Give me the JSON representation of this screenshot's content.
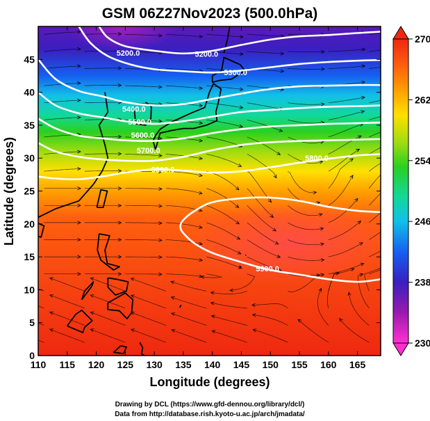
{
  "chart_data": {
    "type": "heatmap",
    "title": "GSM 06Z27Nov2023 (500.0hPa)",
    "xlabel": "Longitude (degrees)",
    "ylabel": "Latitude  (degrees)",
    "x_ticks": [
      110,
      115,
      120,
      125,
      130,
      135,
      140,
      145,
      150,
      155,
      160,
      165
    ],
    "y_ticks": [
      0,
      5,
      10,
      15,
      20,
      25,
      30,
      35,
      40,
      45
    ],
    "xlim": [
      110,
      169
    ],
    "ylim": [
      0,
      50
    ],
    "colorbar": {
      "ticks": [
        230,
        238,
        246,
        254,
        262,
        270
      ],
      "range": [
        230,
        270
      ],
      "colors": [
        "#ff30d0",
        "#9a1ab0",
        "#3a1fc0",
        "#1560f0",
        "#12c0e8",
        "#12d89a",
        "#2ad020",
        "#a0dc10",
        "#ffe000",
        "#ffa000",
        "#ff6010",
        "#ee2810"
      ]
    },
    "contour_labels": [
      {
        "text": "5200.0",
        "lon": 125.5,
        "lat": 46.0
      },
      {
        "text": "5200.0",
        "lon": 139.0,
        "lat": 45.8
      },
      {
        "text": "5300.0",
        "lon": 144.0,
        "lat": 43.0
      },
      {
        "text": "5400.0",
        "lon": 126.5,
        "lat": 37.5
      },
      {
        "text": "5500.0",
        "lon": 127.5,
        "lat": 35.5
      },
      {
        "text": "5600.0",
        "lon": 128.0,
        "lat": 33.5
      },
      {
        "text": "5700.0",
        "lon": 129.0,
        "lat": 31.2
      },
      {
        "text": "5800.0",
        "lon": 131.5,
        "lat": 28.3
      },
      {
        "text": "5800.0",
        "lon": 158.0,
        "lat": 30.0
      },
      {
        "text": "5900.0",
        "lon": 149.5,
        "lat": 13.2
      }
    ],
    "contour_lines": [
      {
        "level": "5200",
        "points": [
          [
            120.5,
            50
          ],
          [
            122,
            48.3
          ],
          [
            125,
            47.0
          ],
          [
            130,
            46.3
          ],
          [
            135,
            45.9
          ],
          [
            140,
            46.3
          ],
          [
            145,
            47.2
          ],
          [
            150,
            48.0
          ],
          [
            155,
            48.5
          ],
          [
            160,
            48.7
          ],
          [
            165,
            49.0
          ],
          [
            169,
            49.2
          ]
        ]
      },
      {
        "level": "5300",
        "points": [
          [
            117,
            50
          ],
          [
            119,
            47.5
          ],
          [
            122,
            45.5
          ],
          [
            126,
            44.2
          ],
          [
            130,
            43.5
          ],
          [
            135,
            43.2
          ],
          [
            140,
            43.0
          ],
          [
            145,
            43.3
          ],
          [
            150,
            43.8
          ],
          [
            155,
            44.3
          ],
          [
            160,
            44.6
          ],
          [
            165,
            44.8
          ],
          [
            169,
            44.9
          ]
        ]
      },
      {
        "level": "5400",
        "points": [
          [
            110,
            45.0
          ],
          [
            113,
            42.0
          ],
          [
            117,
            40.2
          ],
          [
            121,
            39.4
          ],
          [
            125,
            38.5
          ],
          [
            130,
            38.0
          ],
          [
            135,
            38.2
          ],
          [
            140,
            39.0
          ],
          [
            145,
            39.8
          ],
          [
            150,
            40.5
          ],
          [
            155,
            40.9
          ],
          [
            160,
            41.0
          ],
          [
            165,
            41.1
          ],
          [
            169,
            41.1
          ]
        ]
      },
      {
        "level": "5500",
        "points": [
          [
            110,
            40.0
          ],
          [
            113,
            38.0
          ],
          [
            117,
            36.8
          ],
          [
            121,
            36.2
          ],
          [
            125,
            35.6
          ],
          [
            130,
            35.2
          ],
          [
            135,
            35.6
          ],
          [
            140,
            36.3
          ],
          [
            145,
            37.0
          ],
          [
            150,
            37.3
          ],
          [
            155,
            37.6
          ],
          [
            160,
            37.8
          ],
          [
            165,
            37.9
          ],
          [
            169,
            38.0
          ]
        ]
      },
      {
        "level": "5600",
        "points": [
          [
            110,
            36.0
          ],
          [
            113,
            34.5
          ],
          [
            117,
            33.4
          ],
          [
            121,
            33.0
          ],
          [
            125,
            32.7
          ],
          [
            130,
            32.6
          ],
          [
            135,
            33.0
          ],
          [
            140,
            33.8
          ],
          [
            145,
            34.4
          ],
          [
            150,
            34.8
          ],
          [
            155,
            35.0
          ],
          [
            160,
            35.2
          ],
          [
            165,
            35.3
          ],
          [
            169,
            35.4
          ]
        ]
      },
      {
        "level": "5700",
        "points": [
          [
            110,
            32.3
          ],
          [
            113,
            31.0
          ],
          [
            117,
            30.2
          ],
          [
            121,
            29.8
          ],
          [
            125,
            29.6
          ],
          [
            130,
            29.6
          ],
          [
            135,
            30.2
          ],
          [
            140,
            31.2
          ],
          [
            145,
            32.0
          ],
          [
            150,
            32.4
          ],
          [
            155,
            32.6
          ],
          [
            160,
            32.7
          ],
          [
            165,
            32.8
          ],
          [
            169,
            32.9
          ]
        ]
      },
      {
        "level": "5800",
        "points": [
          [
            110,
            27.2
          ],
          [
            113,
            26.9
          ],
          [
            117,
            26.8
          ],
          [
            121,
            27.2
          ],
          [
            125,
            27.8
          ],
          [
            130,
            28.3
          ],
          [
            135,
            28.1
          ],
          [
            140,
            27.8
          ],
          [
            145,
            28.0
          ],
          [
            150,
            28.6
          ],
          [
            155,
            29.3
          ],
          [
            160,
            29.9
          ],
          [
            165,
            30.4
          ],
          [
            169,
            30.6
          ]
        ]
      },
      {
        "level": "5900",
        "points": [
          [
            169,
            11.6
          ],
          [
            165,
            11.2
          ],
          [
            160,
            11.6
          ],
          [
            155,
            12.3
          ],
          [
            150,
            13.0
          ],
          [
            145,
            14.2
          ],
          [
            140,
            15.6
          ],
          [
            137,
            17.0
          ],
          [
            135,
            18.6
          ],
          [
            134.5,
            19.6
          ],
          [
            135,
            20.6
          ],
          [
            137,
            22.0
          ],
          [
            140,
            23.3
          ],
          [
            145,
            23.9
          ],
          [
            150,
            24.0
          ],
          [
            155,
            23.5
          ],
          [
            160,
            22.6
          ],
          [
            165,
            22.0
          ],
          [
            169,
            21.8
          ]
        ]
      }
    ]
  },
  "footer": {
    "line1": "Drawing by DCL (https://www.gfd-dennou.org/library/dcl/)",
    "line2": "Data from http://database.rish.kyoto-u.ac.jp/arch/jmadata/"
  }
}
